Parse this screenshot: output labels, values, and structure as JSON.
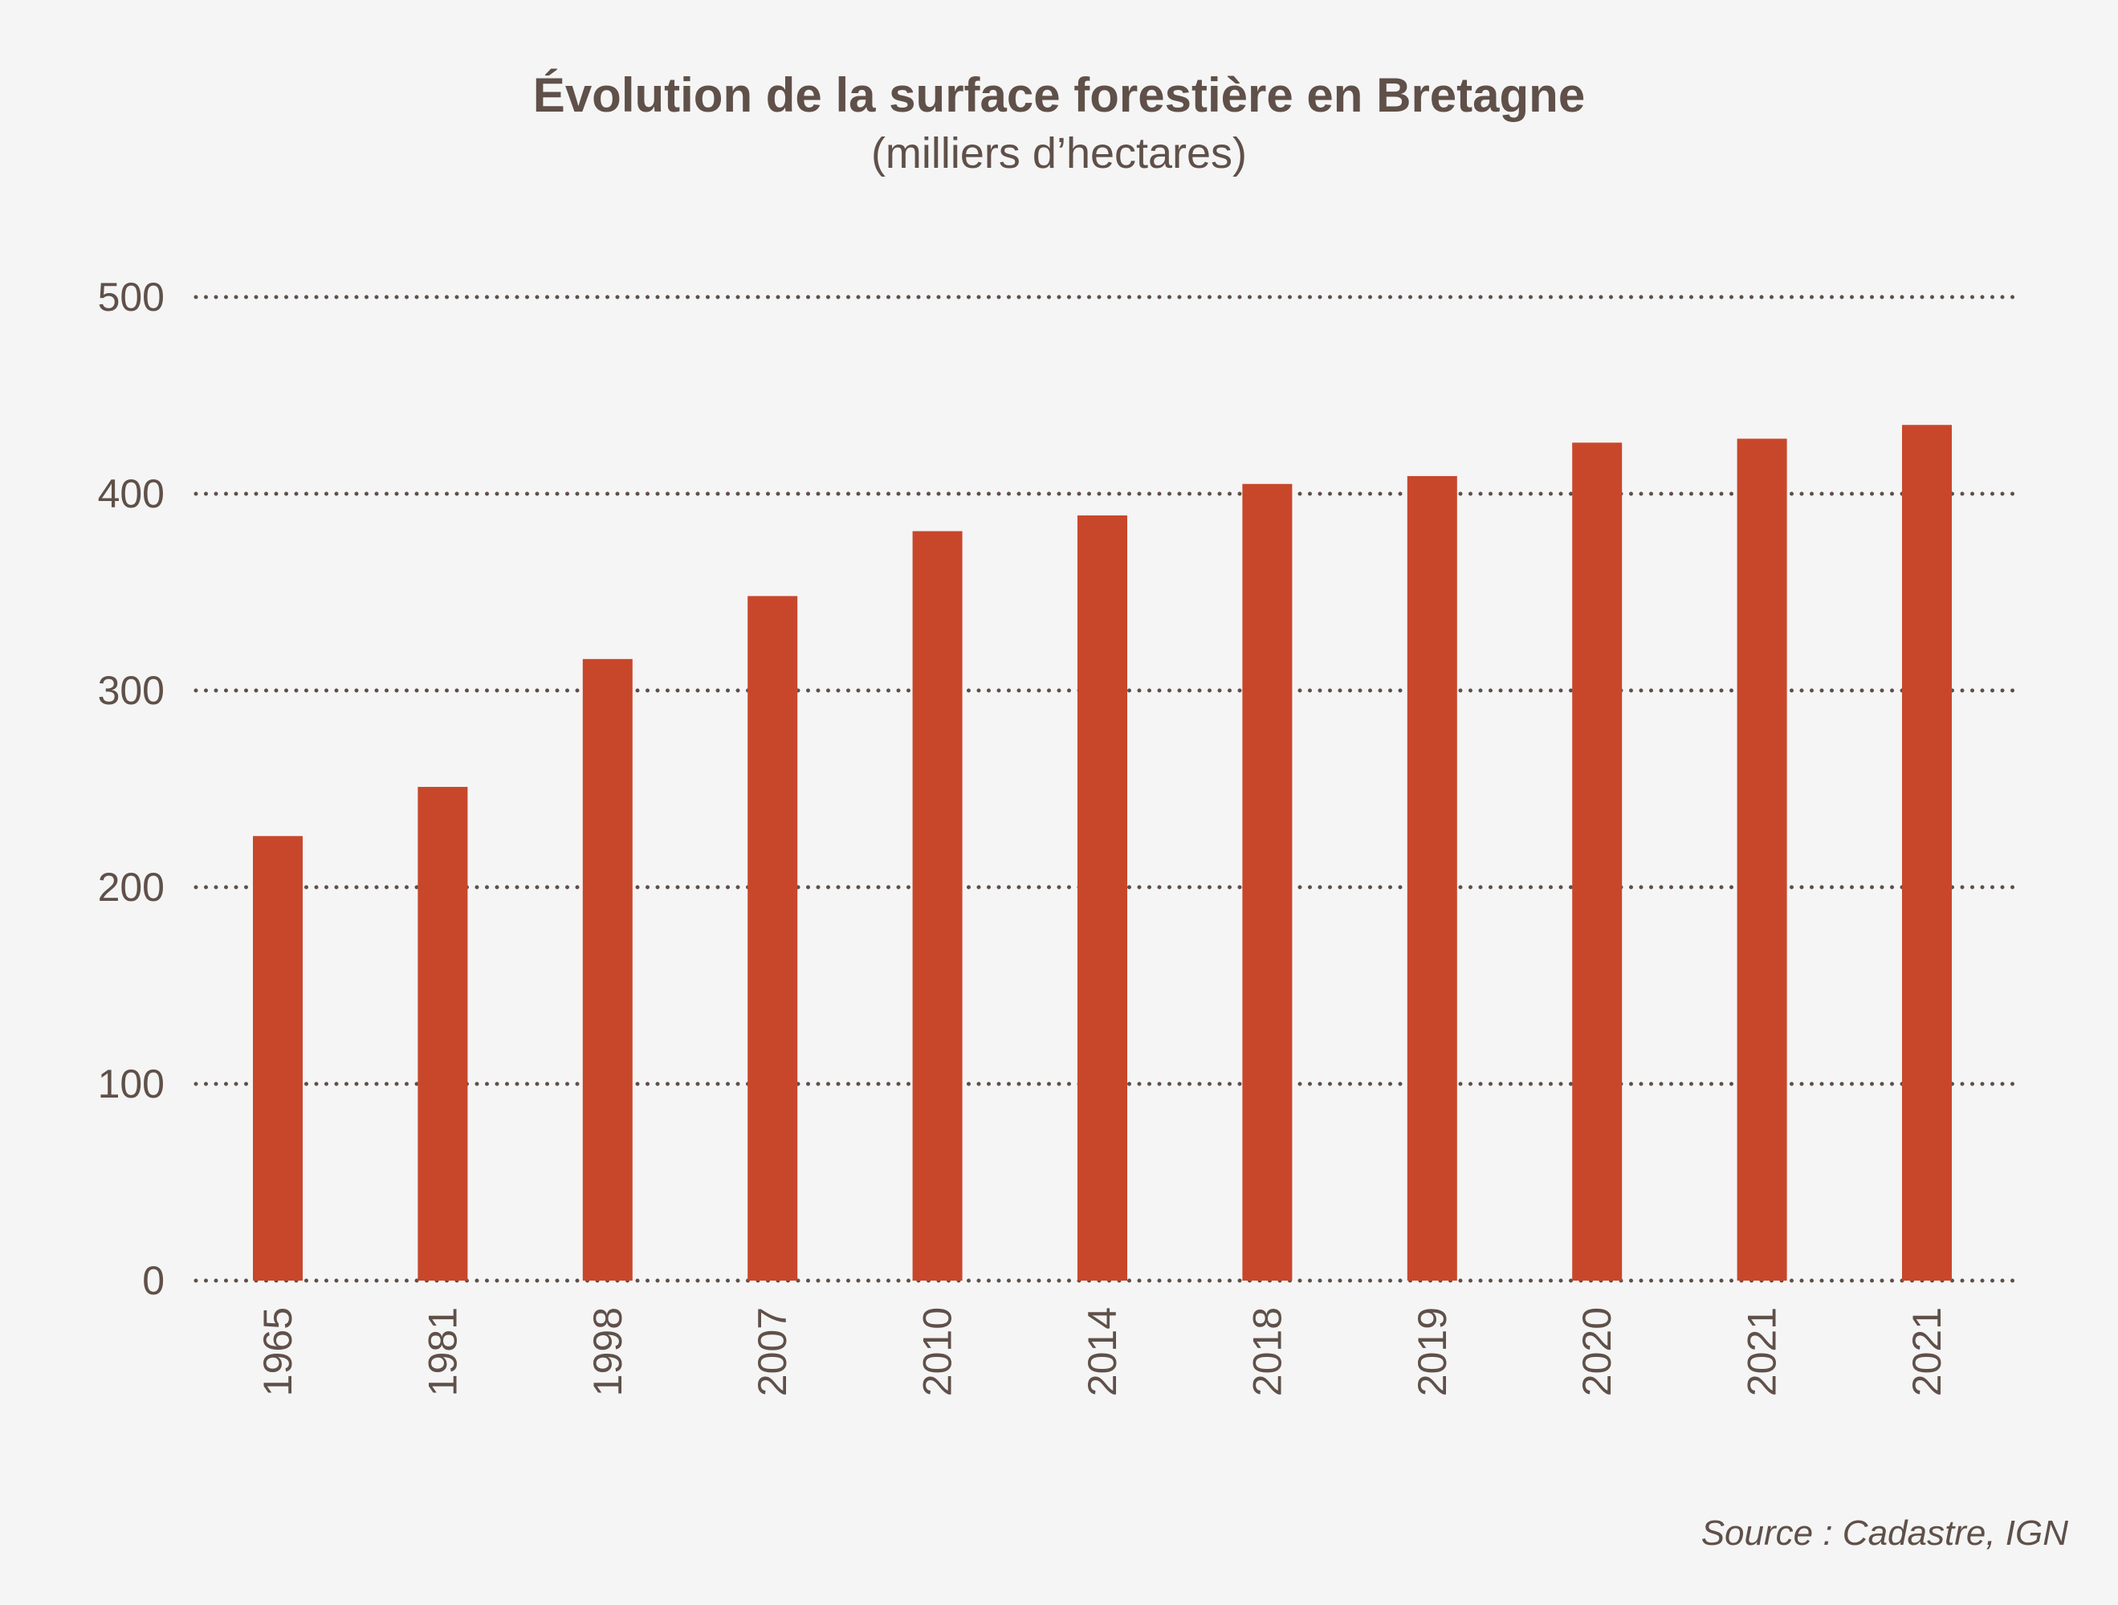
{
  "chart_data": {
    "type": "bar",
    "title": "Évolution de la surface forestière en Bretagne",
    "subtitle": "(milliers d’hectares)",
    "categories": [
      "1965",
      "1981",
      "1998",
      "2007",
      "2010",
      "2014",
      "2018",
      "2019",
      "2020",
      "2021",
      "2021"
    ],
    "values": [
      226,
      251,
      316,
      348,
      381,
      389,
      405,
      409,
      426,
      428,
      435
    ],
    "ylim": [
      0,
      500
    ],
    "yticks": [
      "0",
      "100",
      "200",
      "300",
      "400",
      "500"
    ],
    "grid": true,
    "grid_style": "dotted",
    "bar_color": "#c8472b",
    "text_color": "#5f5049",
    "source": "Source : Cadastre, IGN"
  }
}
